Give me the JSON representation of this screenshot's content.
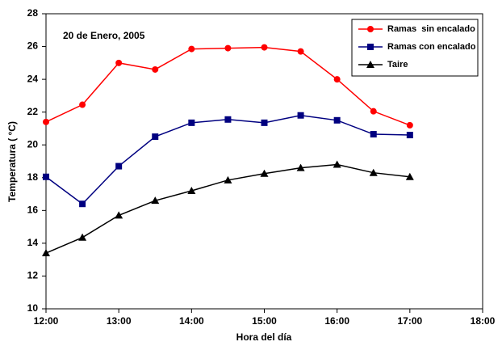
{
  "chart_data": {
    "type": "line",
    "annotation": "20 de Enero, 2005",
    "x_label": "Hora del día",
    "y_label": "Temperatura ( °C)",
    "x": [
      12,
      12.5,
      13,
      13.5,
      14,
      14.5,
      15,
      15.5,
      16,
      16.5,
      17
    ],
    "xlim": [
      12,
      18
    ],
    "xticks": [
      {
        "value": 12,
        "label": "12:00"
      },
      {
        "value": 13,
        "label": "13:00"
      },
      {
        "value": 14,
        "label": "14:00"
      },
      {
        "value": 15,
        "label": "15:00"
      },
      {
        "value": 16,
        "label": "16:00"
      },
      {
        "value": 17,
        "label": "17:00"
      },
      {
        "value": 18,
        "label": "18:00"
      }
    ],
    "ylim": [
      10,
      28
    ],
    "yticks": [
      10,
      12,
      14,
      16,
      18,
      20,
      22,
      24,
      26,
      28
    ],
    "legend": "top-right",
    "series": [
      {
        "name": "Ramas  sin encalado",
        "color": "#ff0000",
        "marker": "circle",
        "values": [
          21.4,
          22.45,
          25.0,
          24.6,
          25.85,
          25.9,
          25.95,
          25.7,
          24.0,
          22.05,
          21.2
        ]
      },
      {
        "name": "Ramas con encalado",
        "color": "#000080",
        "marker": "square",
        "values": [
          18.05,
          16.4,
          18.7,
          20.5,
          21.35,
          21.55,
          21.35,
          21.8,
          21.5,
          20.65,
          20.6
        ]
      },
      {
        "name": "Taire",
        "color": "#000000",
        "marker": "triangle",
        "values": [
          13.4,
          14.35,
          15.7,
          16.6,
          17.2,
          17.85,
          18.25,
          18.6,
          18.8,
          18.3,
          18.05
        ]
      }
    ]
  }
}
